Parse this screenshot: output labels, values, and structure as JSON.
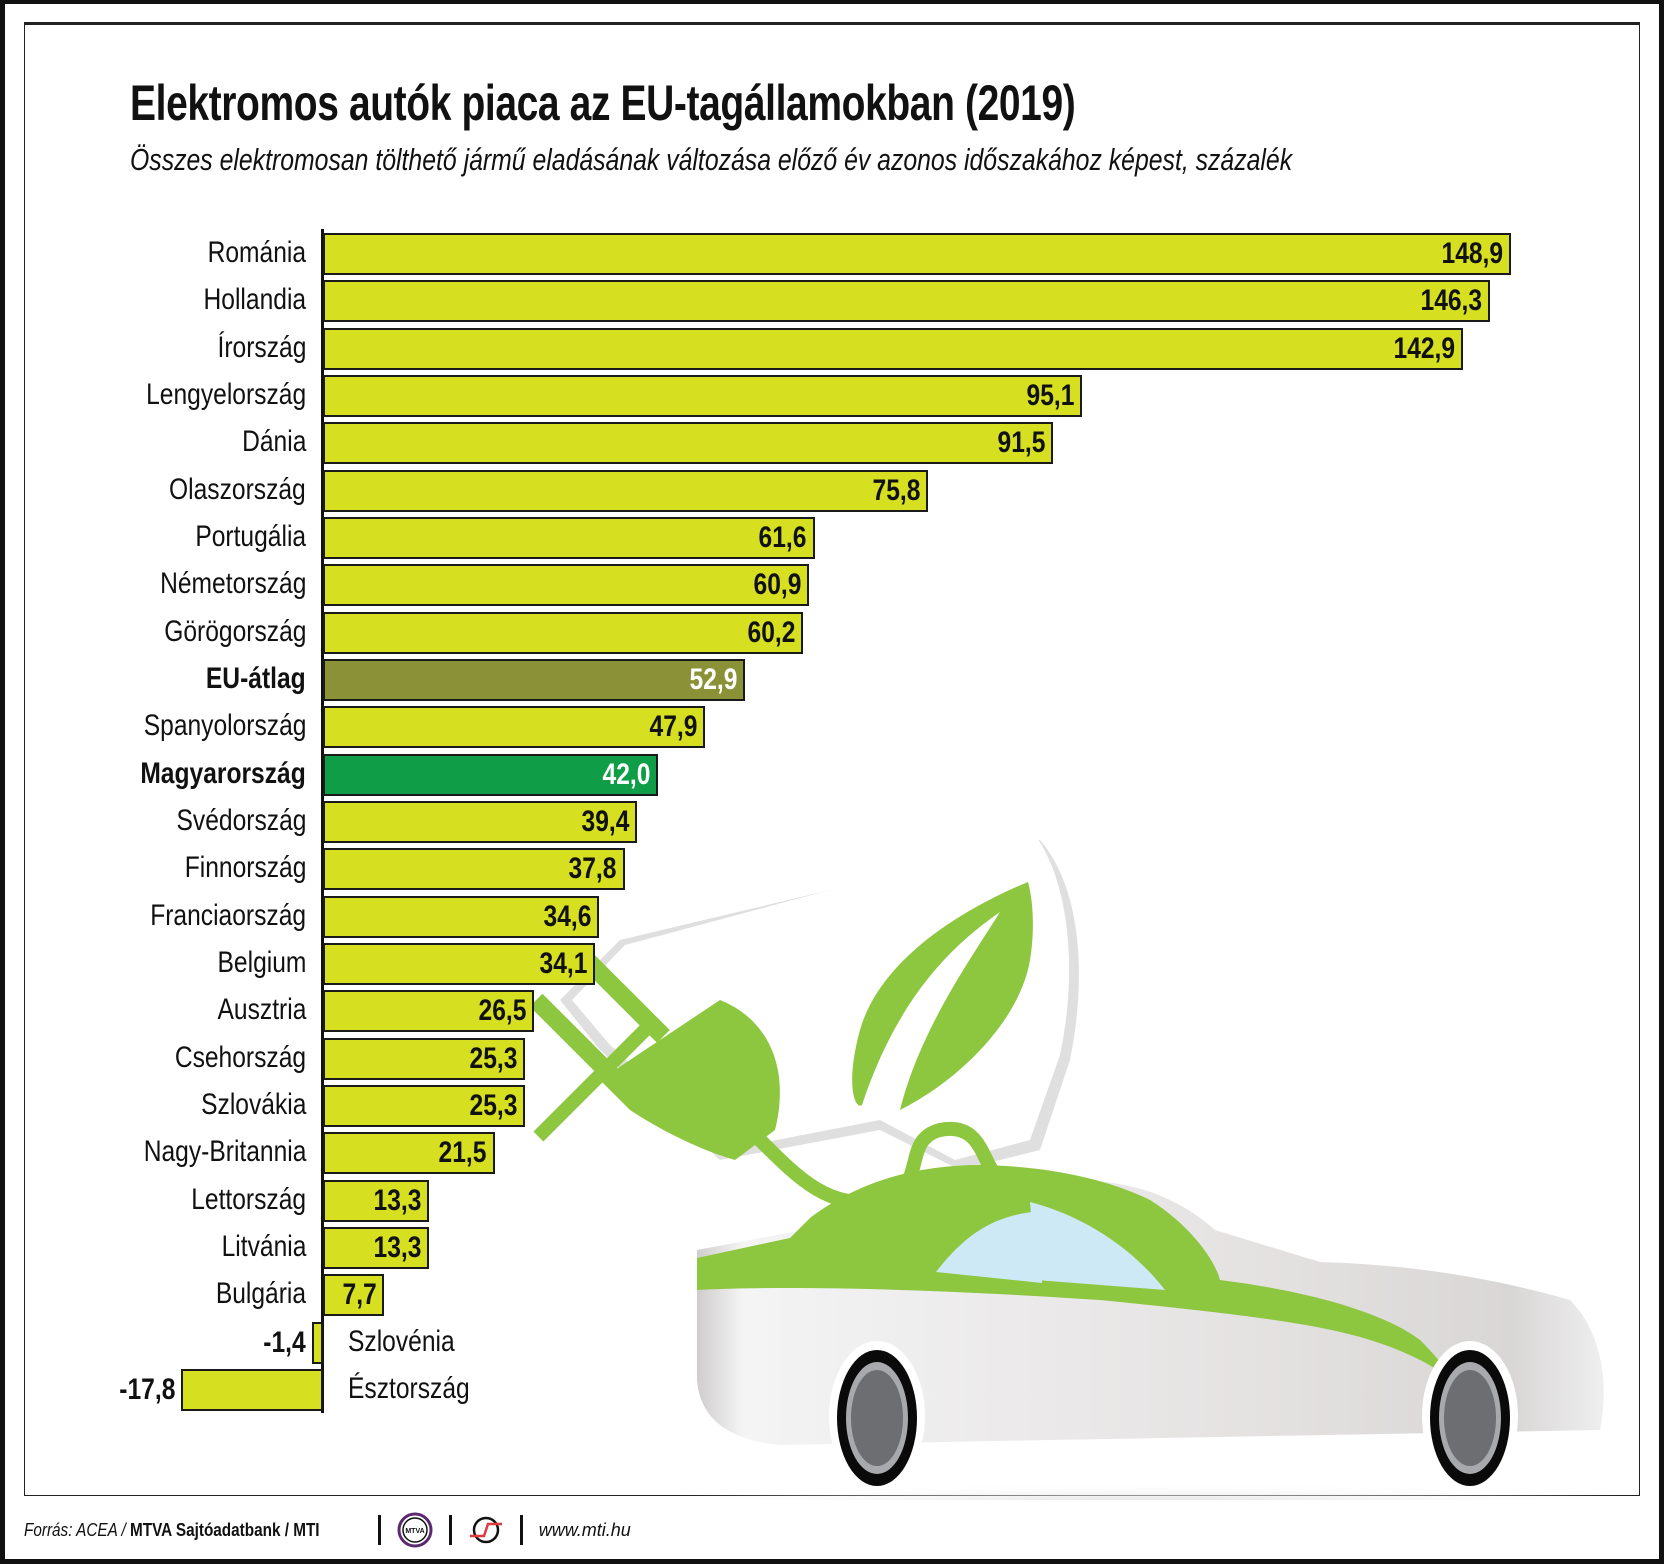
{
  "header": {
    "title": "Elektromos autók piaca az EU-tagállamokban (2019)",
    "subtitle": "Összes elektromosan tölthető jármű eladásának változása előző év azonos időszakához képest, százalék"
  },
  "colors": {
    "bar_default": "#d6e021",
    "bar_eu_average": "#8b9137",
    "bar_hungary": "#0f9d48",
    "illustration_green": "#8dc63f",
    "window_glass": "#cde9f6"
  },
  "chart_data": {
    "type": "bar",
    "orientation": "horizontal",
    "title": "Elektromos autók piaca az EU-tagállamokban (2019)",
    "subtitle": "Összes elektromosan tölthető jármű eladásának változása előző év azonos időszakához képest, százalék",
    "xlabel": "",
    "ylabel": "",
    "unit": "%",
    "grid": false,
    "legend": null,
    "xlim": [
      -17.8,
      148.9
    ],
    "categories": [
      "Románia",
      "Hollandia",
      "Írország",
      "Lengyelország",
      "Dánia",
      "Olaszország",
      "Portugália",
      "Németország",
      "Görögország",
      "EU-átlag",
      "Spanyolország",
      "Magyarország",
      "Svédország",
      "Finnország",
      "Franciaország",
      "Belgium",
      "Ausztria",
      "Csehország",
      "Szlovákia",
      "Nagy-Britannia",
      "Lettország",
      "Litvánia",
      "Bulgária",
      "Szlovénia",
      "Észtország"
    ],
    "values": [
      148.9,
      146.3,
      142.9,
      95.1,
      91.5,
      75.8,
      61.6,
      60.9,
      60.2,
      52.9,
      47.9,
      42.0,
      39.4,
      37.8,
      34.6,
      34.1,
      26.5,
      25.3,
      25.3,
      21.5,
      13.3,
      13.3,
      7.7,
      -1.4,
      -17.8
    ],
    "value_labels": [
      "148,9",
      "146,3",
      "142,9",
      "95,1",
      "91,5",
      "75,8",
      "61,6",
      "60,9",
      "60,2",
      "52,9",
      "47,9",
      "42,0",
      "39,4",
      "37,8",
      "34,6",
      "34,1",
      "26,5",
      "25,3",
      "25,3",
      "21,5",
      "13,3",
      "13,3",
      "7,7",
      "-1,4",
      "-17,8"
    ],
    "highlighted": {
      "EU-átlag": "#8b9137",
      "Magyarország": "#0f9d48"
    }
  },
  "rows": [
    {
      "label": "Románia",
      "value": "148,9"
    },
    {
      "label": "Hollandia",
      "value": "146,3"
    },
    {
      "label": "Írország",
      "value": "142,9"
    },
    {
      "label": "Lengyelország",
      "value": "95,1"
    },
    {
      "label": "Dánia",
      "value": "91,5"
    },
    {
      "label": "Olaszország",
      "value": "75,8"
    },
    {
      "label": "Portugália",
      "value": "61,6"
    },
    {
      "label": "Németország",
      "value": "60,9"
    },
    {
      "label": "Görögország",
      "value": "60,2"
    },
    {
      "label": "EU-átlag",
      "value": "52,9"
    },
    {
      "label": "Spanyolország",
      "value": "47,9"
    },
    {
      "label": "Magyarország",
      "value": "42,0"
    },
    {
      "label": "Svédország",
      "value": "39,4"
    },
    {
      "label": "Finnország",
      "value": "37,8"
    },
    {
      "label": "Franciaország",
      "value": "34,6"
    },
    {
      "label": "Belgium",
      "value": "34,1"
    },
    {
      "label": "Ausztria",
      "value": "26,5"
    },
    {
      "label": "Csehország",
      "value": "25,3"
    },
    {
      "label": "Szlovákia",
      "value": "25,3"
    },
    {
      "label": "Nagy-Britannia",
      "value": "21,5"
    },
    {
      "label": "Lettország",
      "value": "13,3"
    },
    {
      "label": "Litvánia",
      "value": "13,3"
    },
    {
      "label": "Bulgária",
      "value": "7,7"
    },
    {
      "label": "Szlovénia",
      "value": "-1,4"
    },
    {
      "label": "Észtország",
      "value": "-17,8"
    }
  ],
  "illustration": {
    "icons": [
      "plug-icon",
      "leaf-icon",
      "car-icon"
    ]
  },
  "footer": {
    "source_prefix": "Forrás: ACEA / ",
    "source_bold": "MTVA Sajtóadatbank / MTI",
    "logo1_text": "MTVA",
    "website": "www.mti.hu"
  }
}
